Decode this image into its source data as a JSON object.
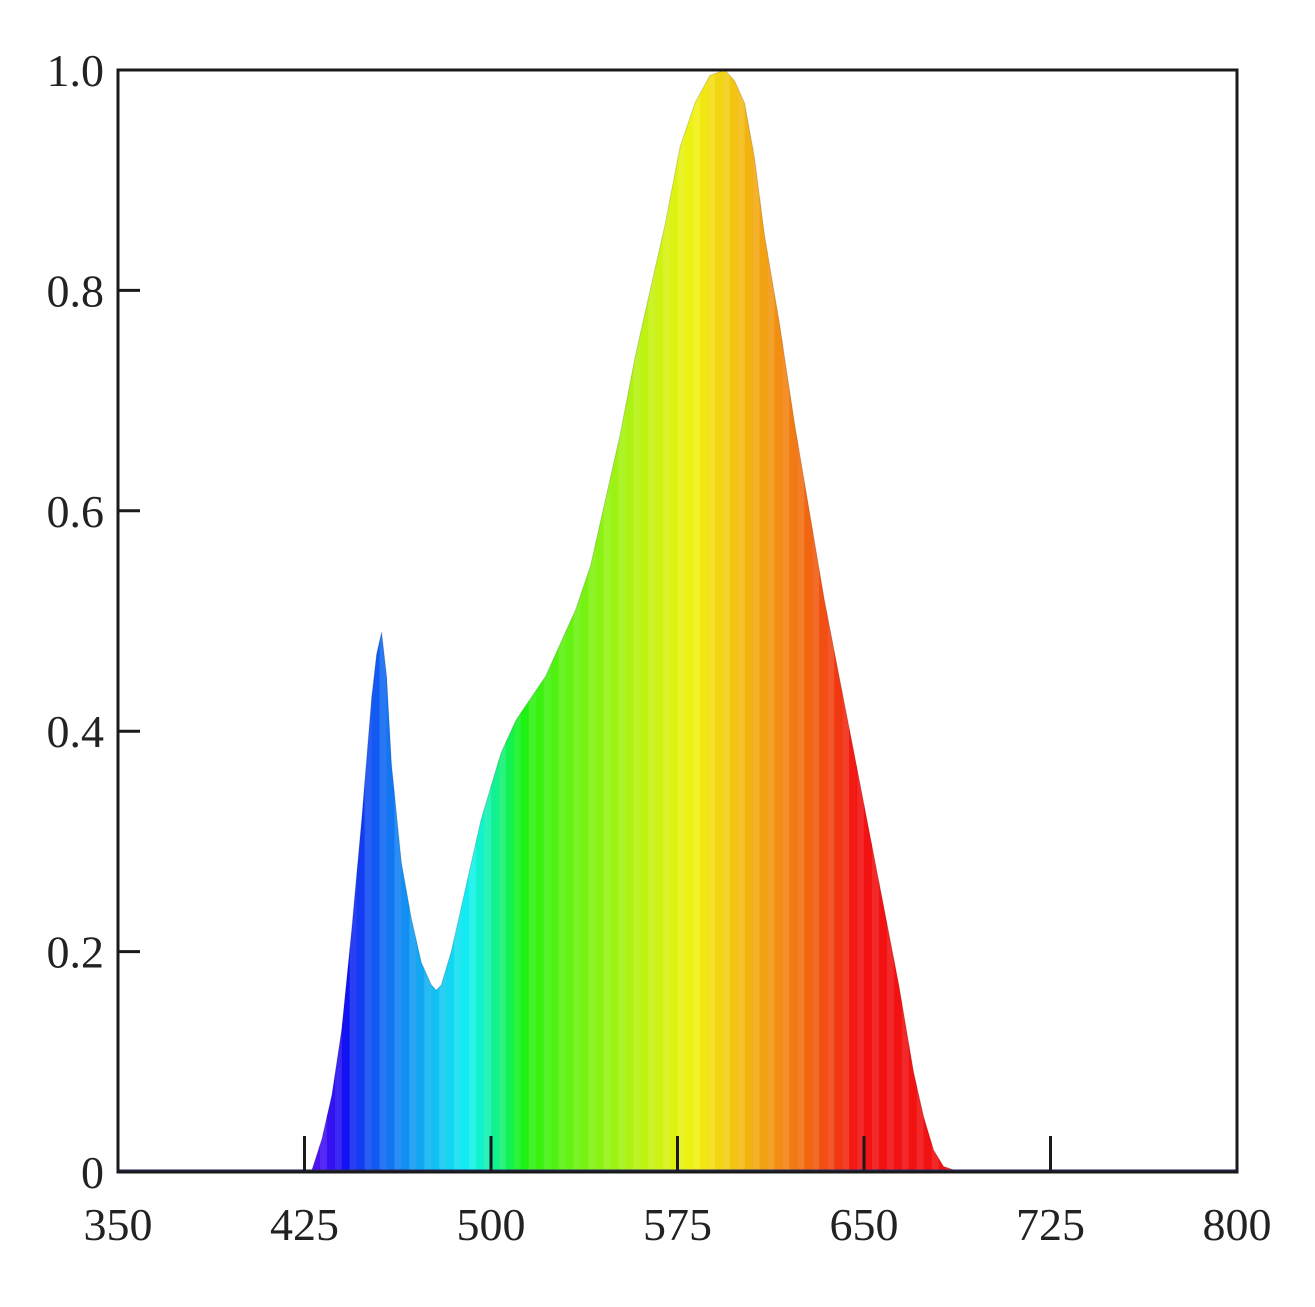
{
  "chart_data": {
    "type": "area",
    "title": "",
    "xlabel": "",
    "ylabel": "",
    "xlim": [
      350,
      800
    ],
    "ylim": [
      0,
      1.0
    ],
    "x_ticks": [
      350,
      425,
      500,
      575,
      650,
      725,
      800
    ],
    "x_tick_labels": [
      "350",
      "425",
      "500",
      "575",
      "650",
      "725",
      "800"
    ],
    "y_ticks": [
      0,
      0.2,
      0.4,
      0.6,
      0.8,
      1.0
    ],
    "y_tick_labels": [
      "0",
      "0.2",
      "0.4",
      "0.6",
      "0.8",
      "1.0"
    ],
    "grid": false,
    "fill": "spectral-rainbow",
    "series": [
      {
        "x": [
          350,
          380,
          410,
          428,
          432,
          436,
          440,
          444,
          448,
          452,
          454,
          456,
          458,
          460,
          464,
          468,
          472,
          476,
          478,
          480,
          484,
          488,
          492,
          496,
          500,
          504,
          510,
          516,
          522,
          528,
          534,
          540,
          546,
          552,
          558,
          564,
          570,
          576,
          582,
          588,
          594,
          598,
          602,
          606,
          610,
          616,
          622,
          628,
          634,
          640,
          646,
          652,
          658,
          664,
          670,
          674,
          678,
          682,
          686,
          700,
          725,
          760,
          800
        ],
        "y": [
          0.002,
          0.002,
          0.002,
          0.002,
          0.03,
          0.07,
          0.13,
          0.22,
          0.32,
          0.43,
          0.47,
          0.49,
          0.45,
          0.37,
          0.28,
          0.23,
          0.19,
          0.17,
          0.165,
          0.17,
          0.2,
          0.24,
          0.28,
          0.32,
          0.35,
          0.38,
          0.41,
          0.43,
          0.45,
          0.48,
          0.51,
          0.55,
          0.61,
          0.67,
          0.74,
          0.8,
          0.86,
          0.93,
          0.97,
          0.995,
          1.0,
          0.99,
          0.97,
          0.92,
          0.85,
          0.77,
          0.68,
          0.6,
          0.52,
          0.45,
          0.38,
          0.31,
          0.24,
          0.17,
          0.09,
          0.05,
          0.02,
          0.005,
          0.002,
          0.002,
          0.002,
          0.002,
          0.002
        ]
      }
    ]
  }
}
